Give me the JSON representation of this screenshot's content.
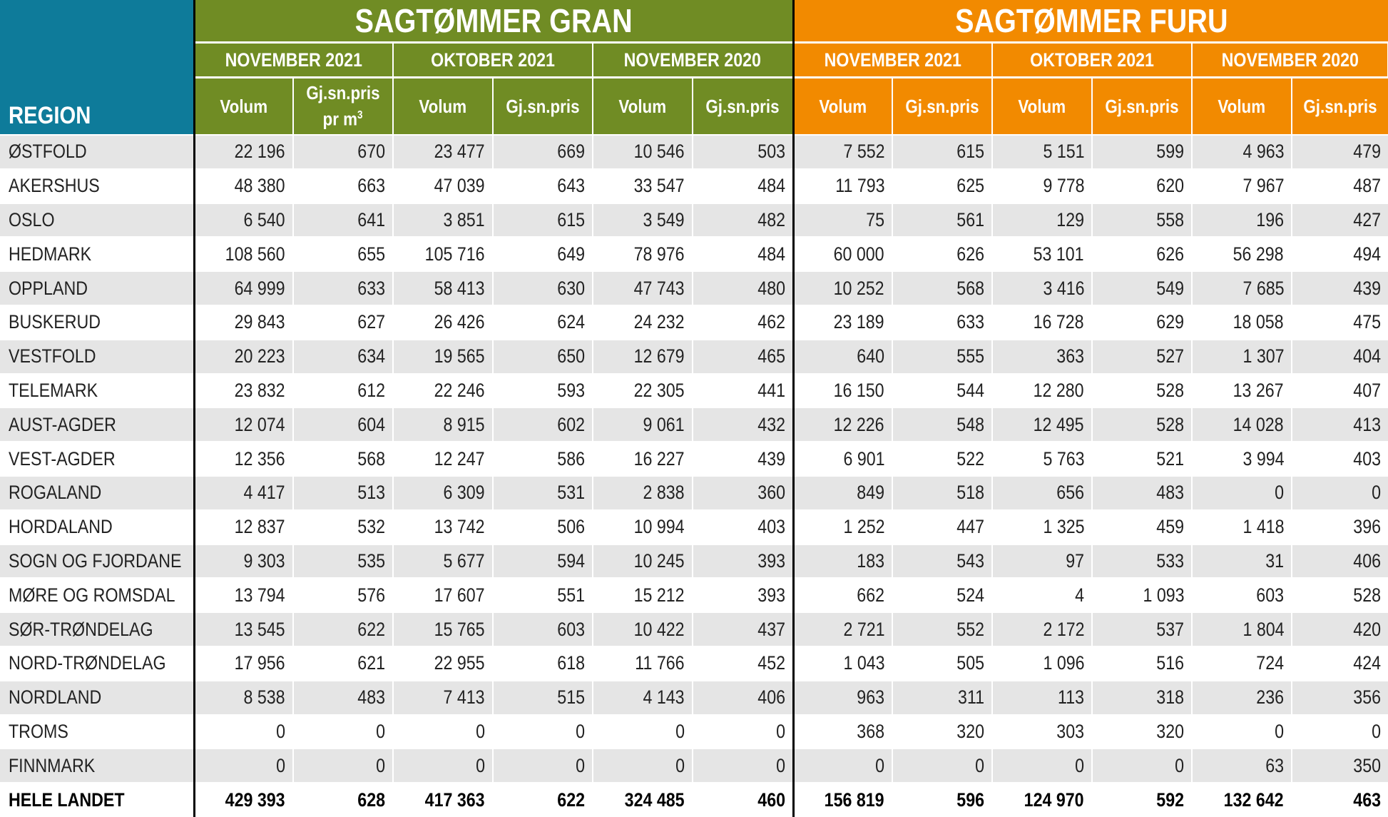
{
  "table": {
    "region_header": "REGION",
    "groups": [
      {
        "label": "SAGTØMMER GRAN",
        "color": "#708c24"
      },
      {
        "label": "SAGTØMMER FURU",
        "color": "#f28a00"
      }
    ],
    "periods": [
      "NOVEMBER 2021",
      "OKTOBER 2021",
      "NOVEMBER 2020",
      "NOVEMBER 2021",
      "OKTOBER 2021",
      "NOVEMBER 2020"
    ],
    "subheaders": [
      {
        "line1": "Volum",
        "line2": "",
        "sup": ""
      },
      {
        "line1": "Gj.sn.pris",
        "line2": "pr m",
        "sup": "3"
      },
      {
        "line1": "Volum",
        "line2": "",
        "sup": ""
      },
      {
        "line1": "Gj.sn.pris",
        "line2": "",
        "sup": ""
      },
      {
        "line1": "Volum",
        "line2": "",
        "sup": ""
      },
      {
        "line1": "Gj.sn.pris",
        "line2": "",
        "sup": ""
      },
      {
        "line1": "Volum",
        "line2": "",
        "sup": ""
      },
      {
        "line1": "Gj.sn.pris",
        "line2": "",
        "sup": ""
      },
      {
        "line1": "Volum",
        "line2": "",
        "sup": ""
      },
      {
        "line1": "Gj.sn.pris",
        "line2": "",
        "sup": ""
      },
      {
        "line1": "Volum",
        "line2": "",
        "sup": ""
      },
      {
        "line1": "Gj.sn.pris",
        "line2": "",
        "sup": ""
      }
    ]
  },
  "chart_data": {
    "type": "table",
    "columns": [
      "REGION",
      "Volum",
      "Gj.sn.pris pr m3",
      "Volum",
      "Gj.sn.pris",
      "Volum",
      "Gj.sn.pris",
      "Volum",
      "Gj.sn.pris",
      "Volum",
      "Gj.sn.pris",
      "Volum",
      "Gj.sn.pris"
    ],
    "rows": [
      [
        "ØSTFOLD",
        "22 196",
        "670",
        "23 477",
        "669",
        "10 546",
        "503",
        "7 552",
        "615",
        "5 151",
        "599",
        "4 963",
        "479"
      ],
      [
        "AKERSHUS",
        "48 380",
        "663",
        "47 039",
        "643",
        "33 547",
        "484",
        "11 793",
        "625",
        "9 778",
        "620",
        "7 967",
        "487"
      ],
      [
        "OSLO",
        "6 540",
        "641",
        "3 851",
        "615",
        "3 549",
        "482",
        "75",
        "561",
        "129",
        "558",
        "196",
        "427"
      ],
      [
        "HEDMARK",
        "108 560",
        "655",
        "105 716",
        "649",
        "78 976",
        "484",
        "60 000",
        "626",
        "53 101",
        "626",
        "56 298",
        "494"
      ],
      [
        "OPPLAND",
        "64 999",
        "633",
        "58 413",
        "630",
        "47 743",
        "480",
        "10 252",
        "568",
        "3 416",
        "549",
        "7 685",
        "439"
      ],
      [
        "BUSKERUD",
        "29 843",
        "627",
        "26 426",
        "624",
        "24 232",
        "462",
        "23 189",
        "633",
        "16 728",
        "629",
        "18 058",
        "475"
      ],
      [
        "VESTFOLD",
        "20 223",
        "634",
        "19 565",
        "650",
        "12 679",
        "465",
        "640",
        "555",
        "363",
        "527",
        "1 307",
        "404"
      ],
      [
        "TELEMARK",
        "23 832",
        "612",
        "22 246",
        "593",
        "22 305",
        "441",
        "16 150",
        "544",
        "12 280",
        "528",
        "13 267",
        "407"
      ],
      [
        "AUST-AGDER",
        "12 074",
        "604",
        "8 915",
        "602",
        "9 061",
        "432",
        "12 226",
        "548",
        "12 495",
        "528",
        "14 028",
        "413"
      ],
      [
        "VEST-AGDER",
        "12 356",
        "568",
        "12 247",
        "586",
        "16 227",
        "439",
        "6 901",
        "522",
        "5 763",
        "521",
        "3 994",
        "403"
      ],
      [
        "ROGALAND",
        "4 417",
        "513",
        "6 309",
        "531",
        "2 838",
        "360",
        "849",
        "518",
        "656",
        "483",
        "0",
        "0"
      ],
      [
        "HORDALAND",
        "12 837",
        "532",
        "13 742",
        "506",
        "10 994",
        "403",
        "1 252",
        "447",
        "1 325",
        "459",
        "1 418",
        "396"
      ],
      [
        "SOGN OG FJORDANE",
        "9 303",
        "535",
        "5 677",
        "594",
        "10 245",
        "393",
        "183",
        "543",
        "97",
        "533",
        "31",
        "406"
      ],
      [
        "MØRE OG ROMSDAL",
        "13 794",
        "576",
        "17 607",
        "551",
        "15 212",
        "393",
        "662",
        "524",
        "4",
        "1 093",
        "603",
        "528"
      ],
      [
        "SØR-TRØNDELAG",
        "13 545",
        "622",
        "15 765",
        "603",
        "10 422",
        "437",
        "2 721",
        "552",
        "2 172",
        "537",
        "1 804",
        "420"
      ],
      [
        "NORD-TRØNDELAG",
        "17 956",
        "621",
        "22 955",
        "618",
        "11 766",
        "452",
        "1 043",
        "505",
        "1 096",
        "516",
        "724",
        "424"
      ],
      [
        "NORDLAND",
        "8 538",
        "483",
        "7 413",
        "515",
        "4 143",
        "406",
        "963",
        "311",
        "113",
        "318",
        "236",
        "356"
      ],
      [
        "TROMS",
        "0",
        "0",
        "0",
        "0",
        "0",
        "0",
        "368",
        "320",
        "303",
        "320",
        "0",
        "0"
      ],
      [
        "FINNMARK",
        "0",
        "0",
        "0",
        "0",
        "0",
        "0",
        "0",
        "0",
        "0",
        "0",
        "63",
        "350"
      ],
      [
        "HELE LANDET",
        "429 393",
        "628",
        "417 363",
        "622",
        "324 485",
        "460",
        "156 819",
        "596",
        "124 970",
        "592",
        "132 642",
        "463"
      ]
    ]
  }
}
